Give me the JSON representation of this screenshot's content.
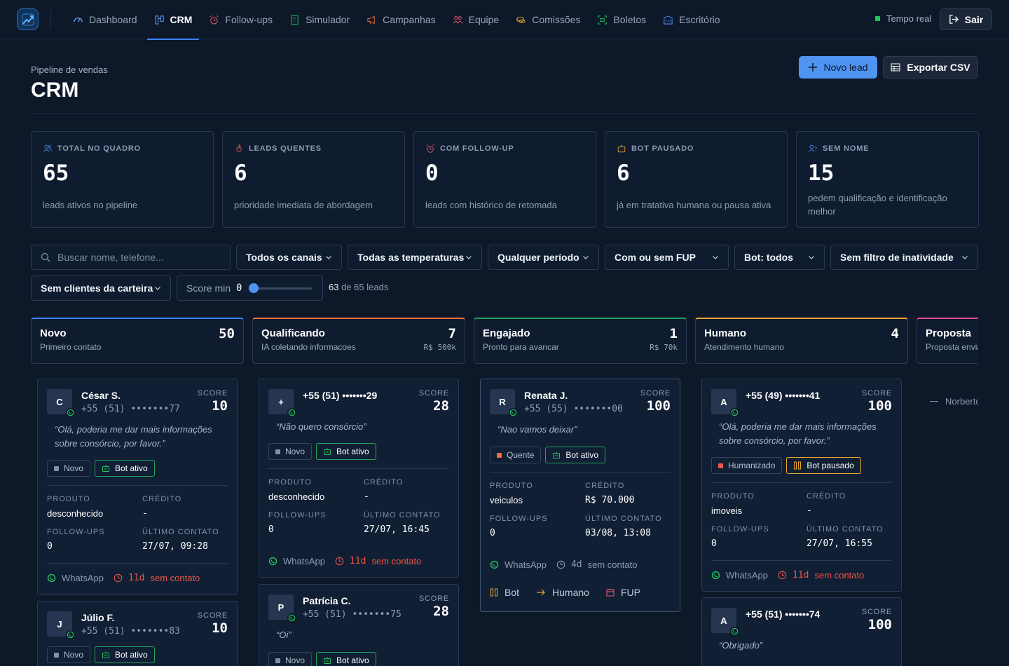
{
  "nav": {
    "items": [
      {
        "label": "Dashboard",
        "icon": "gauge-icon",
        "active": false
      },
      {
        "label": "CRM",
        "icon": "kanban-icon",
        "active": true
      },
      {
        "label": "Follow-ups",
        "icon": "alarm-icon",
        "active": false
      },
      {
        "label": "Simulador",
        "icon": "calculator-icon",
        "active": false
      },
      {
        "label": "Campanhas",
        "icon": "megaphone-icon",
        "active": false
      },
      {
        "label": "Equipe",
        "icon": "team-icon",
        "active": false
      },
      {
        "label": "Comissões",
        "icon": "coins-icon",
        "active": false
      },
      {
        "label": "Boletos",
        "icon": "scan-icon",
        "active": false
      },
      {
        "label": "Escritório",
        "icon": "building-icon",
        "active": false
      }
    ],
    "tempo": "Tempo real",
    "sair": "Sair"
  },
  "header": {
    "subtitle": "Pipeline de vendas",
    "title": "CRM",
    "new_lead": "Novo lead",
    "export": "Exportar CSV"
  },
  "stats": [
    {
      "label": "TOTAL NO QUADRO",
      "value": "65",
      "desc": "leads ativos no pipeline",
      "icon": "users-icon",
      "color": "#4f8ff0"
    },
    {
      "label": "LEADS QUENTES",
      "value": "6",
      "desc": "prioridade imediata de abordagem",
      "icon": "flame-icon",
      "color": "#ef5444"
    },
    {
      "label": "COM FOLLOW-UP",
      "value": "0",
      "desc": "leads com histórico de retomada",
      "icon": "alarm-icon",
      "color": "#ef5b6e"
    },
    {
      "label": "BOT PAUSADO",
      "value": "6",
      "desc": "já em tratativa humana ou pausa ativa",
      "icon": "bot-icon",
      "color": "#e8a531"
    },
    {
      "label": "SEM NOME",
      "value": "15",
      "desc": "pedem qualificação e identificação melhor",
      "icon": "user-question-icon",
      "color": "#4f8ff0"
    }
  ],
  "filters": {
    "search_placeholder": "Buscar nome, telefone...",
    "canais": "Todos os canais",
    "temperaturas": "Todas as temperaturas",
    "periodo": "Qualquer período",
    "fup": "Com ou sem FUP",
    "bot": "Bot: todos",
    "inatividade": "Sem filtro de inatividade",
    "carteira": "Sem clientes da carteira",
    "score_label": "Score min",
    "score_value": "0",
    "score_fraction": 0.0,
    "count_shown": "63",
    "count_rest": "de 65 leads"
  },
  "columns": [
    {
      "name": "Novo",
      "desc": "Primeiro contato",
      "count": "50",
      "meta": "",
      "color": "#3b82f6"
    },
    {
      "name": "Qualificando",
      "desc": "IA coletando informacoes",
      "count": "7",
      "meta": "R$ 500k",
      "color": "#f0703a"
    },
    {
      "name": "Engajado",
      "desc": "Pronto para avancar",
      "count": "1",
      "meta": "R$ 70k",
      "color": "#22a35a"
    },
    {
      "name": "Humano",
      "desc": "Atendimento humano",
      "count": "4",
      "meta": "",
      "color": "#e8a531"
    },
    {
      "name": "Proposta",
      "desc": "Proposta enviada",
      "count": "",
      "meta": "",
      "color": "#ec4899"
    }
  ],
  "card_labels": {
    "score": "SCORE",
    "produto": "PRODUTO",
    "credito": "CRÉDITO",
    "followups": "FOLLOW-UPS",
    "ultimo": "ÚLTIMO CONTATO",
    "channel": "WhatsApp",
    "sem_contato": "sem contato"
  },
  "cards": {
    "c1": {
      "initial": "C",
      "name": "César S.",
      "phone": "+55 (51) •••••••77",
      "score": "10",
      "quote": "“Olá, poderia me dar mais informações sobre consórcio, por favor.”",
      "temp": "Novo",
      "bot": "Bot ativo",
      "produto": "desconhecido",
      "credito": "-",
      "followups": "0",
      "ultimo": "27/07, 09:28",
      "days": "11d"
    },
    "c2": {
      "initial": "J",
      "name": "Júlio F.",
      "phone": "+55 (51) •••••••83",
      "score": "10",
      "temp": "Novo",
      "bot": "Bot ativo"
    },
    "c3": {
      "initial": "+",
      "name": "+55 (51) •••••••29",
      "score": "28",
      "quote": "“Não quero consórcio”",
      "temp": "Novo",
      "bot": "Bot ativo",
      "produto": "desconhecido",
      "credito": "-",
      "followups": "0",
      "ultimo": "27/07, 16:45",
      "days": "11d"
    },
    "c4": {
      "initial": "P",
      "name": "Patrícia C.",
      "phone": "+55 (51) •••••••75",
      "score": "28",
      "quote": "“Oi”",
      "temp": "Novo",
      "bot": "Bot ativo"
    },
    "c5": {
      "initial": "R",
      "name": "Renata J.",
      "phone": "+55 (55) •••••••00",
      "score": "100",
      "quote": "“Nao vamos deixar”",
      "temp": "Quente",
      "bot": "Bot ativo",
      "produto": "veiculos",
      "credito": "R$ 70.000",
      "followups": "0",
      "ultimo": "03/08, 13:08",
      "days": "4d",
      "act_bot": "Bot",
      "act_humano": "Humano",
      "act_fup": "FUP"
    },
    "c6": {
      "initial": "A",
      "name": "+55 (49) •••••••41",
      "score": "100",
      "quote": "“Olá, poderia me dar mais informações sobre consórcio, por favor.”",
      "temp": "Humanizado",
      "bot": "Bot pausado",
      "produto": "imoveis",
      "credito": "-",
      "followups": "0",
      "ultimo": "27/07, 16:55",
      "days": "11d"
    },
    "c7": {
      "initial": "A",
      "name": "+55 (51) •••••••74",
      "score": "100",
      "quote": "“Obrigado”"
    }
  },
  "ghost": "Norberto"
}
